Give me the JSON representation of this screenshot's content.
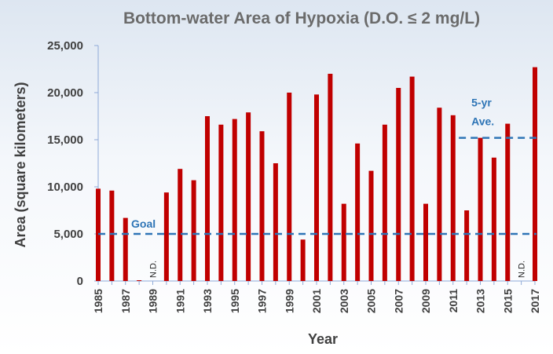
{
  "chart_data": {
    "type": "bar",
    "title": "Bottom-water Area of Hypoxia (D.O. ≤ 2 mg/L)",
    "xlabel": "Year",
    "ylabel": "Area (square kilometers)",
    "ylim": [
      0,
      25000
    ],
    "yticks": [
      "0",
      "5,000",
      "10,000",
      "15,000",
      "20,000",
      "25,000"
    ],
    "xtick_labels": [
      "1985",
      "1987",
      "1989",
      "1991",
      "1993",
      "1995",
      "1997",
      "1999",
      "2001",
      "2003",
      "2005",
      "2007",
      "2009",
      "2011",
      "2013",
      "2015",
      "2017"
    ],
    "categories": [
      1985,
      1986,
      1987,
      1988,
      1989,
      1990,
      1991,
      1992,
      1993,
      1994,
      1995,
      1996,
      1997,
      1998,
      1999,
      2000,
      2001,
      2002,
      2003,
      2004,
      2005,
      2006,
      2007,
      2008,
      2009,
      2010,
      2011,
      2012,
      2013,
      2014,
      2015,
      2016,
      2017
    ],
    "values": [
      9800,
      9600,
      6700,
      50,
      null,
      9400,
      11900,
      10700,
      17500,
      16600,
      17200,
      17900,
      15900,
      12500,
      20000,
      4400,
      19800,
      22000,
      8200,
      14600,
      11700,
      16600,
      20500,
      21700,
      8200,
      18400,
      17600,
      7500,
      15200,
      13100,
      16700,
      null,
      22700
    ],
    "bar_color": "#c00000",
    "nd_label": "N.D.",
    "nd_years": [
      1989,
      2016
    ],
    "reference_lines": [
      {
        "label": "Goal",
        "value": 5000,
        "x_start": 1985,
        "x_end": 2017,
        "color": "#2e75b6"
      },
      {
        "label_lines": [
          "5-yr",
          "Ave."
        ],
        "value": 15200,
        "x_start": 2012,
        "x_end": 2017,
        "color": "#2e75b6"
      }
    ],
    "grid": false,
    "legend": "none"
  }
}
